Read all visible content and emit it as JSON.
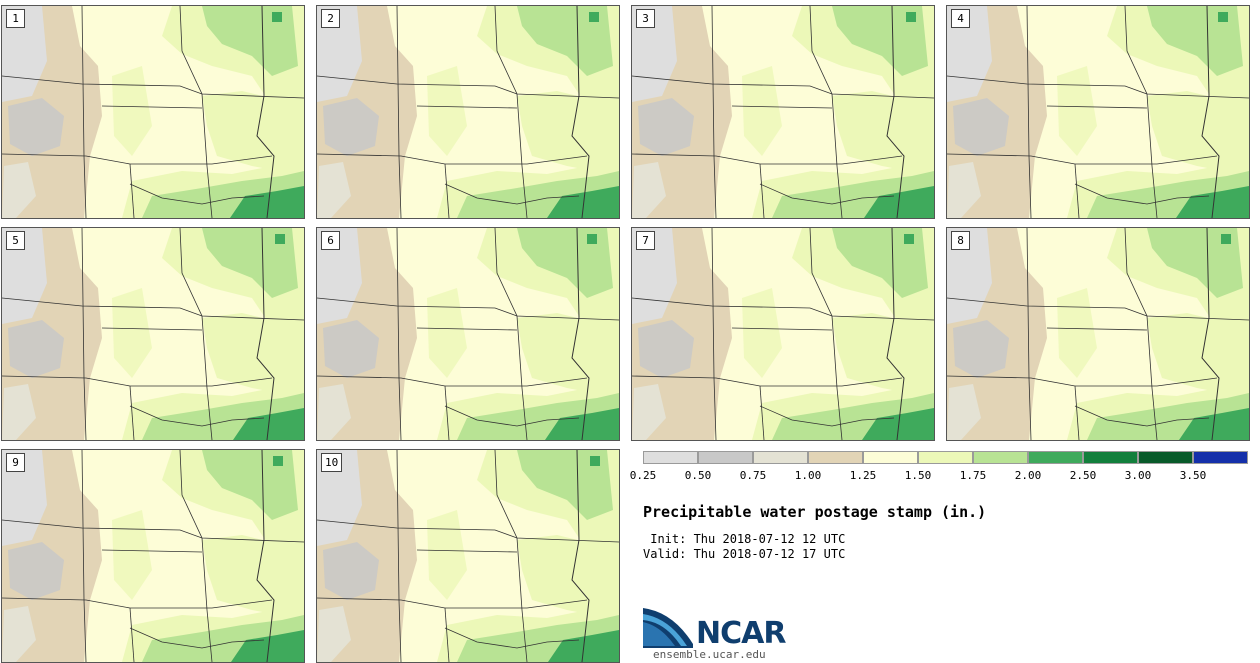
{
  "panels": [
    {
      "label": "1"
    },
    {
      "label": "2"
    },
    {
      "label": "3"
    },
    {
      "label": "4"
    },
    {
      "label": "5"
    },
    {
      "label": "6"
    },
    {
      "label": "7"
    },
    {
      "label": "8"
    },
    {
      "label": "9"
    },
    {
      "label": "10"
    }
  ],
  "colorbar": {
    "ticks": [
      "0.25",
      "0.50",
      "0.75",
      "1.00",
      "1.25",
      "1.50",
      "1.75",
      "2.00",
      "2.50",
      "3.00",
      "3.50"
    ],
    "colors": [
      "#dedede",
      "#c8c8c8",
      "#e4e2d4",
      "#e2d4b6",
      "#fdfdd7",
      "#ecf8b8",
      "#b8e394",
      "#3faa5c",
      "#127f3c",
      "#085a2a",
      "#1530aa"
    ]
  },
  "title": "Precipitable water postage stamp (in.)",
  "init_line": " Init: Thu 2018-07-12 12 UTC",
  "valid_line": "Valid: Thu 2018-07-12 17 UTC",
  "logo": {
    "wordmark": "NCAR",
    "url": "ensemble.ucar.edu",
    "colors": {
      "swoosh": "#0f3e6e",
      "accent": "#4aa3d8"
    }
  }
}
